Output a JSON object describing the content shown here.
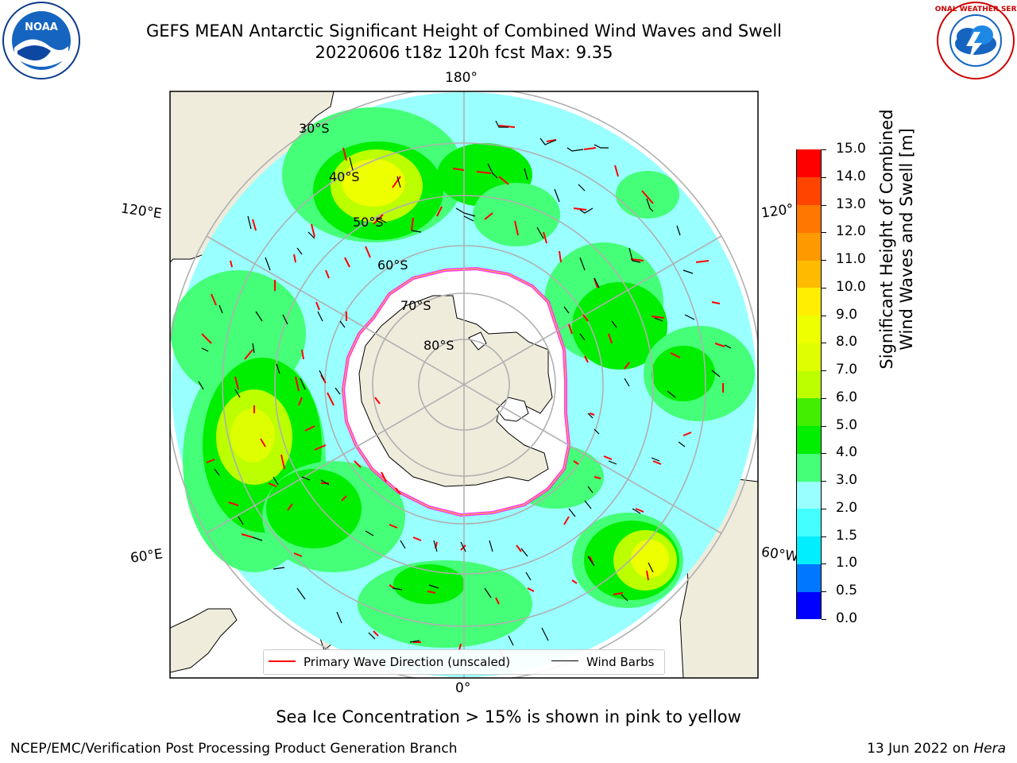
{
  "header": {
    "title_line1": "GEFS MEAN Antarctic Significant Height of Combined Wind Waves and Swell",
    "title_line2": "20220606 t18z 120h fcst   Max: 9.35"
  },
  "logos": {
    "left": "NOAA",
    "right": "NATIONAL WEATHER SERVICE"
  },
  "map": {
    "projection": "south-polar-stereographic",
    "longitude_labels": {
      "top": "180°",
      "bottom": "0°",
      "left_upper": "120°E",
      "left_lower": "60°E",
      "right_upper": "120°",
      "right_lower": "60°W"
    },
    "latitude_labels": [
      "30°S",
      "40°S",
      "50°S",
      "60°S",
      "70°S",
      "80°S"
    ],
    "colors": {
      "land": "#efecdc",
      "ocean_light": "#99ffff",
      "sea_ice": "#ffffff",
      "ice_edge_pink": "#ff33ff",
      "ice_edge_yellow": "#ffcc00",
      "arrows": "#ff0000",
      "barbs": "#000000"
    }
  },
  "legend": {
    "items": [
      {
        "label": "Primary Wave Direction (unscaled)",
        "color": "#ff0000"
      },
      {
        "label": "Wind Barbs",
        "color": "#000000"
      }
    ]
  },
  "colorbar": {
    "label_line1": "Significant Height of Combined",
    "label_line2": "Wind Waves and Swell [m]",
    "ticks": [
      "0.0",
      "0.5",
      "1.0",
      "1.5",
      "2.0",
      "3.0",
      "4.0",
      "5.0",
      "6.0",
      "7.0",
      "8.0",
      "9.0",
      "10.0",
      "11.0",
      "12.0",
      "13.0",
      "14.0",
      "15.0"
    ],
    "bands": [
      {
        "range": "0.0-0.5",
        "color": "#0000ff"
      },
      {
        "range": "0.5-1.0",
        "color": "#0077ff"
      },
      {
        "range": "1.0-1.5",
        "color": "#00eeff"
      },
      {
        "range": "1.5-2.0",
        "color": "#44ffff"
      },
      {
        "range": "2.0-3.0",
        "color": "#99ffff"
      },
      {
        "range": "3.0-4.0",
        "color": "#44ff77"
      },
      {
        "range": "4.0-5.0",
        "color": "#00ee00"
      },
      {
        "range": "5.0-6.0",
        "color": "#44ee00"
      },
      {
        "range": "6.0-7.0",
        "color": "#bbff00"
      },
      {
        "range": "7.0-8.0",
        "color": "#ddff00"
      },
      {
        "range": "8.0-9.0",
        "color": "#eeff00"
      },
      {
        "range": "9.0-10.0",
        "color": "#ffee00"
      },
      {
        "range": "10.0-11.0",
        "color": "#ffbb00"
      },
      {
        "range": "11.0-12.0",
        "color": "#ff9900"
      },
      {
        "range": "12.0-13.0",
        "color": "#ff7700"
      },
      {
        "range": "13.0-14.0",
        "color": "#ff4400"
      },
      {
        "range": "14.0-15.0",
        "color": "#ff0000"
      }
    ]
  },
  "caption": "Sea Ice Concentration > 15% is shown in pink to yellow",
  "footer": {
    "left": "NCEP/EMC/Verification Post Processing Product Generation Branch",
    "right_prefix": "13 Jun 2022 on ",
    "right_host": "Hera"
  }
}
